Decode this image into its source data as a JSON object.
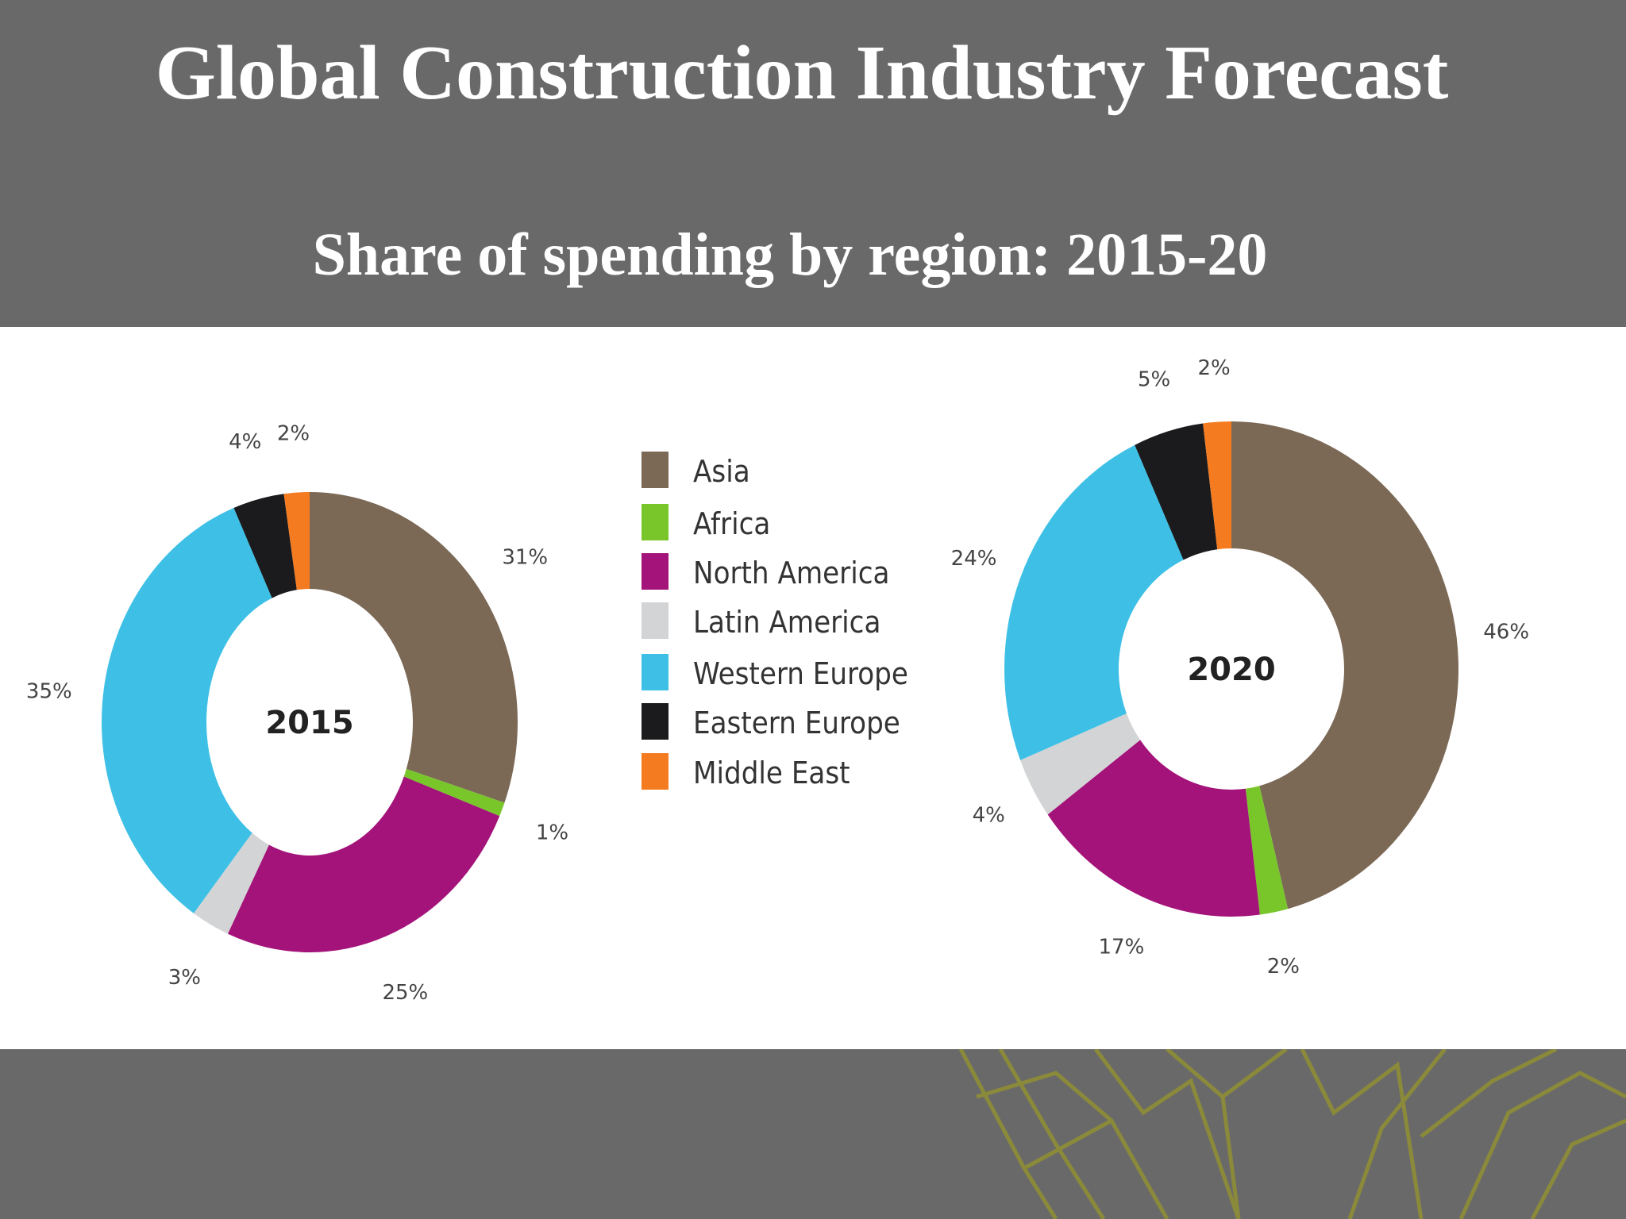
{
  "slide": {
    "title": "Global Construction Industry Forecast"
  },
  "colors": {
    "background": "#6a696a",
    "panel": "#ffffff",
    "pattern": "#8a8a3a"
  },
  "chart_data": {
    "type": "donut",
    "subtitle": "Share of spending by region: 2015-20",
    "legend_position": "center",
    "legend": [
      {
        "name": "Asia",
        "color": "#7b6956"
      },
      {
        "name": "Africa",
        "color": "#79c62b"
      },
      {
        "name": "North America",
        "color": "#a3137a"
      },
      {
        "name": "Latin America",
        "color": "#d3d4d6"
      },
      {
        "name": "Western Europe",
        "color": "#3ec0e6"
      },
      {
        "name": "Eastern Europe",
        "color": "#1b1b1d"
      },
      {
        "name": "Middle East",
        "color": "#f47b20"
      }
    ],
    "charts": [
      {
        "center_label": "2015",
        "slices": [
          {
            "name": "Asia",
            "value": 31,
            "label": "31%"
          },
          {
            "name": "Africa",
            "value": 1,
            "label": "1%"
          },
          {
            "name": "North America",
            "value": 25,
            "label": "25%"
          },
          {
            "name": "Latin America",
            "value": 3,
            "label": "3%"
          },
          {
            "name": "Western Europe",
            "value": 35,
            "label": "35%"
          },
          {
            "name": "Eastern Europe",
            "value": 4,
            "label": "4%"
          },
          {
            "name": "Middle East",
            "value": 2,
            "label": "2%"
          }
        ]
      },
      {
        "center_label": "2020",
        "slices": [
          {
            "name": "Asia",
            "value": 46,
            "label": "46%"
          },
          {
            "name": "Africa",
            "value": 2,
            "label": "2%"
          },
          {
            "name": "North America",
            "value": 17,
            "label": "17%"
          },
          {
            "name": "Latin America",
            "value": 4,
            "label": "4%"
          },
          {
            "name": "Western Europe",
            "value": 24,
            "label": "24%"
          },
          {
            "name": "Eastern Europe",
            "value": 5,
            "label": "5%"
          },
          {
            "name": "Middle East",
            "value": 2,
            "label": "2%"
          }
        ]
      }
    ]
  }
}
